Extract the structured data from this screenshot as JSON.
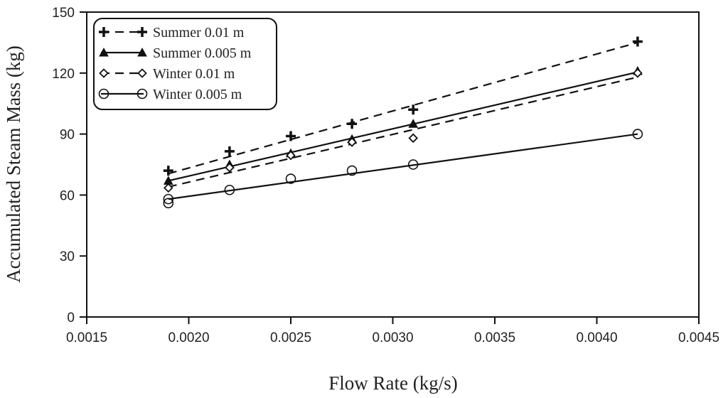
{
  "chart_data": {
    "type": "scatter",
    "title": "",
    "xlabel": "Flow Rate (kg/s)",
    "ylabel": "Accumulated Steam Mass (kg)",
    "xlim": [
      0.0015,
      0.0045
    ],
    "ylim": [
      0,
      150
    ],
    "xticks": [
      "0.0015",
      "0.0020",
      "0.0025",
      "0.0030",
      "0.0035",
      "0.0040",
      "0.0045"
    ],
    "yticks": [
      "0",
      "30",
      "60",
      "90",
      "120",
      "150"
    ],
    "legend_position": "top-left",
    "series": [
      {
        "name": "Summer 0.01 m",
        "marker": "plus",
        "line_style": "dashed",
        "x": [
          0.0019,
          0.0022,
          0.0025,
          0.0028,
          0.0031,
          0.0042
        ],
        "values": [
          72,
          81.5,
          89,
          95,
          102,
          135.5
        ],
        "fit": [
          [
            0.0019,
            70.5
          ],
          [
            0.0042,
            135
          ]
        ]
      },
      {
        "name": "Summer 0.005 m",
        "marker": "triangle",
        "line_style": "solid",
        "x": [
          0.0019,
          0.0022,
          0.0025,
          0.0028,
          0.0031,
          0.0042
        ],
        "values": [
          67,
          75,
          80.5,
          87.5,
          95,
          121
        ],
        "fit": [
          [
            0.0019,
            67
          ],
          [
            0.0042,
            120.5
          ]
        ]
      },
      {
        "name": "Winter 0.01 m",
        "marker": "diamond",
        "line_style": "dashed",
        "x": [
          0.0019,
          0.0022,
          0.0025,
          0.0028,
          0.0031,
          0.0042
        ],
        "values": [
          63.5,
          73.5,
          79.5,
          86,
          88,
          120
        ],
        "fit": [
          [
            0.0019,
            64
          ],
          [
            0.0042,
            118
          ]
        ]
      },
      {
        "name": "Winter 0.005 m",
        "marker": "circle",
        "line_style": "solid",
        "x": [
          0.0019,
          0.0019,
          0.0022,
          0.0025,
          0.0028,
          0.0031,
          0.0042
        ],
        "values": [
          58,
          56,
          62.5,
          68,
          72,
          75,
          90
        ],
        "fit": [
          [
            0.0019,
            58
          ],
          [
            0.0042,
            90
          ]
        ]
      }
    ]
  }
}
